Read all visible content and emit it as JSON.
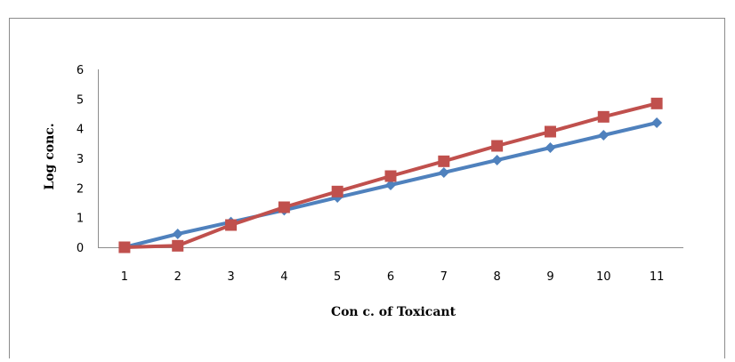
{
  "chart_data": {
    "type": "line",
    "title": "",
    "xlabel": "Con c. of Toxicant",
    "ylabel": "Log conc.",
    "categories": [
      "1",
      "2",
      "3",
      "4",
      "5",
      "6",
      "7",
      "8",
      "9",
      "10",
      "11"
    ],
    "yticks": [
      "0",
      "1",
      "2",
      "3",
      "4",
      "5",
      "6"
    ],
    "ylim": [
      0,
      6
    ],
    "grid": false,
    "legend": "none",
    "series": [
      {
        "color": "#4F81BD",
        "marker": "diamond",
        "values": [
          0,
          0.45,
          0.85,
          1.25,
          1.68,
          2.1,
          2.52,
          2.94,
          3.36,
          3.78,
          4.2
        ]
      },
      {
        "color": "#C0504D",
        "marker": "square",
        "values": [
          0,
          0.05,
          0.75,
          1.35,
          1.88,
          2.4,
          2.9,
          3.42,
          3.9,
          4.4,
          4.85
        ]
      }
    ]
  }
}
